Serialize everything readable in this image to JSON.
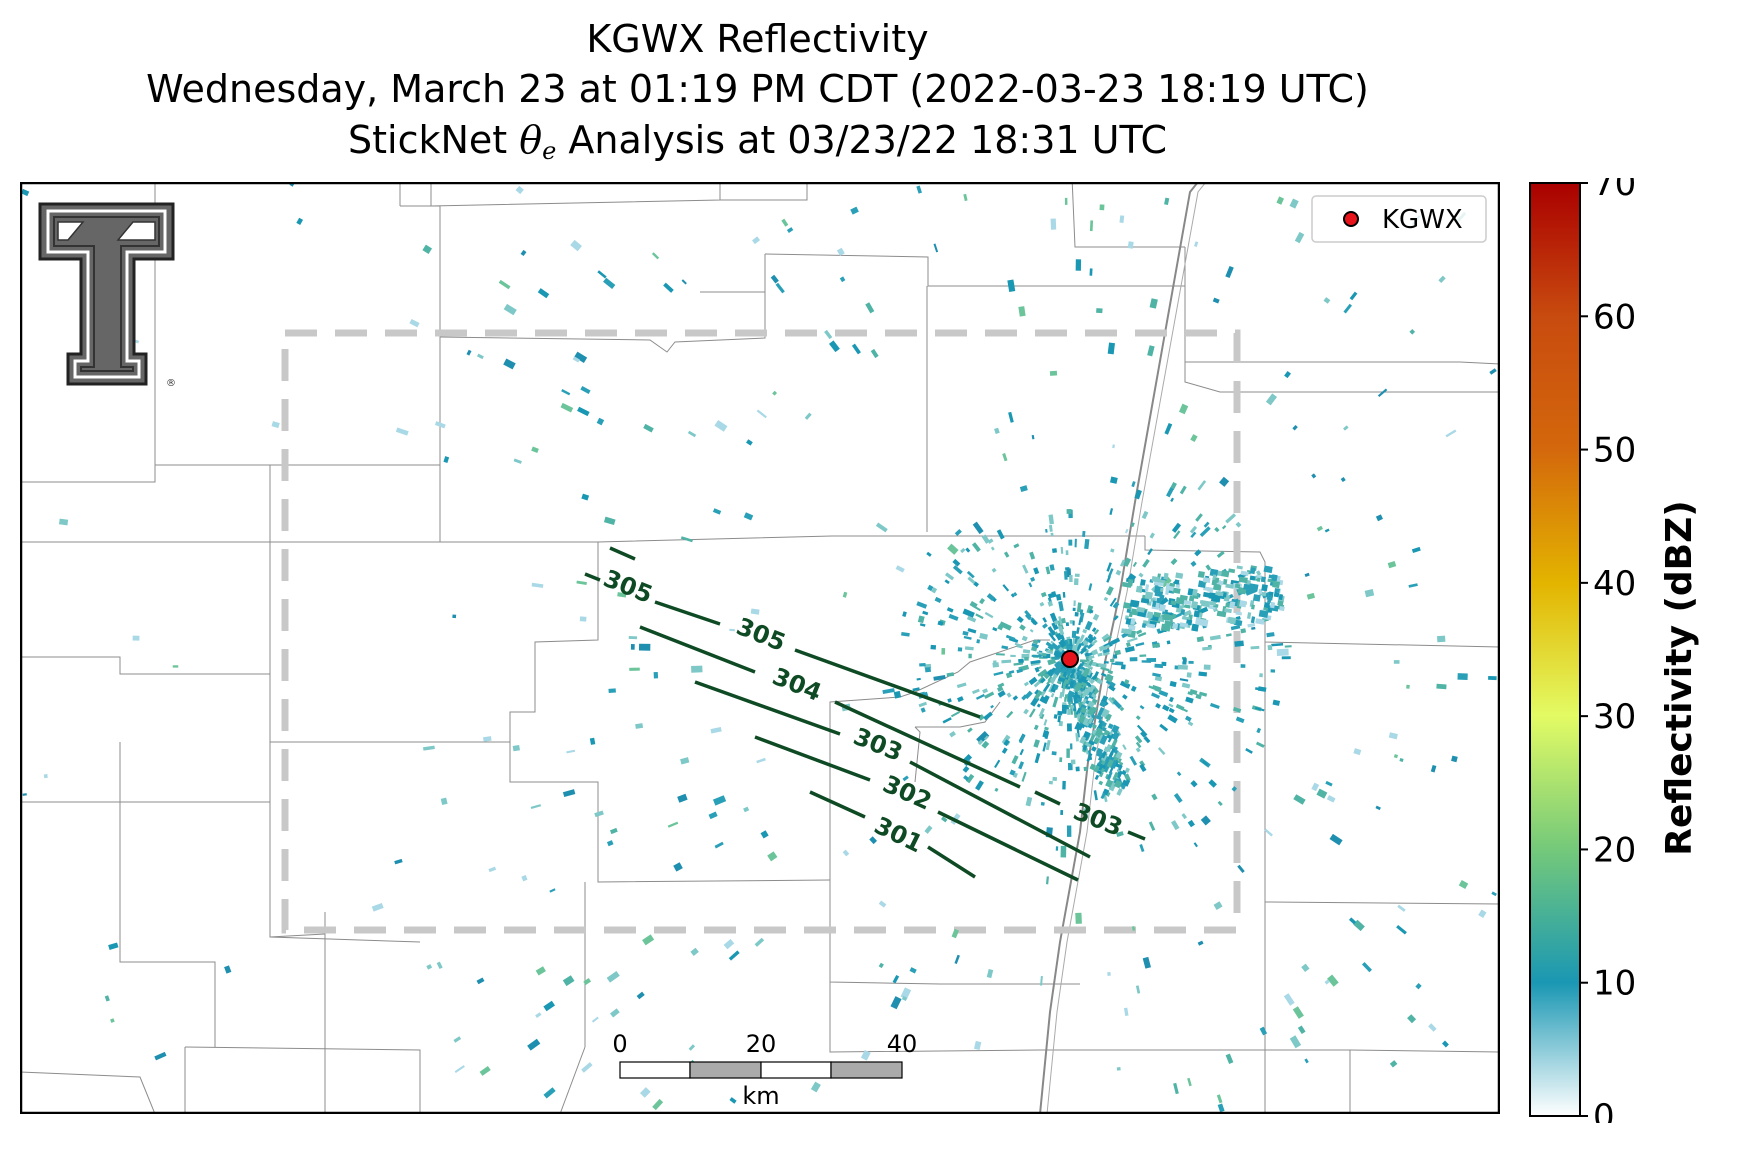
{
  "title": {
    "line1": "KGWX Reflectivity",
    "line2": "Wednesday, March 23 at 01:19 PM CDT (2022-03-23 18:19 UTC)",
    "line3_pre": "StickNet ",
    "line3_theta": "θ",
    "line3_sub": "e",
    "line3_post": " Analysis at 03/23/22 18:31 UTC"
  },
  "legend": {
    "label": "KGWX",
    "marker_color": "#e8141c"
  },
  "scalebar": {
    "ticks": [
      "0",
      "20",
      "40"
    ],
    "unit": "km"
  },
  "colorbar": {
    "label": "Reflectivity (dBZ)",
    "ticks": [
      "0",
      "10",
      "20",
      "30",
      "40",
      "50",
      "60",
      "70"
    ],
    "min": 0,
    "max": 70,
    "stops": [
      "#ffffff",
      "#1a97b3",
      "#74c97a",
      "#e3fb64",
      "#e3b400",
      "#c84b0f",
      "#aa0000"
    ]
  },
  "logo": {
    "name": "Texas Tech Double T"
  },
  "chart_data": {
    "type": "contour-map",
    "radar_site": "KGWX",
    "field": "Reflectivity (dBZ)",
    "contour_field": "StickNet theta_e",
    "contour_labels": [
      "305",
      "305",
      "304",
      "303",
      "302",
      "301",
      "303"
    ],
    "contour_levels": [
      305,
      304,
      303,
      302,
      301
    ],
    "contour_color": "#0e4a24"
  }
}
